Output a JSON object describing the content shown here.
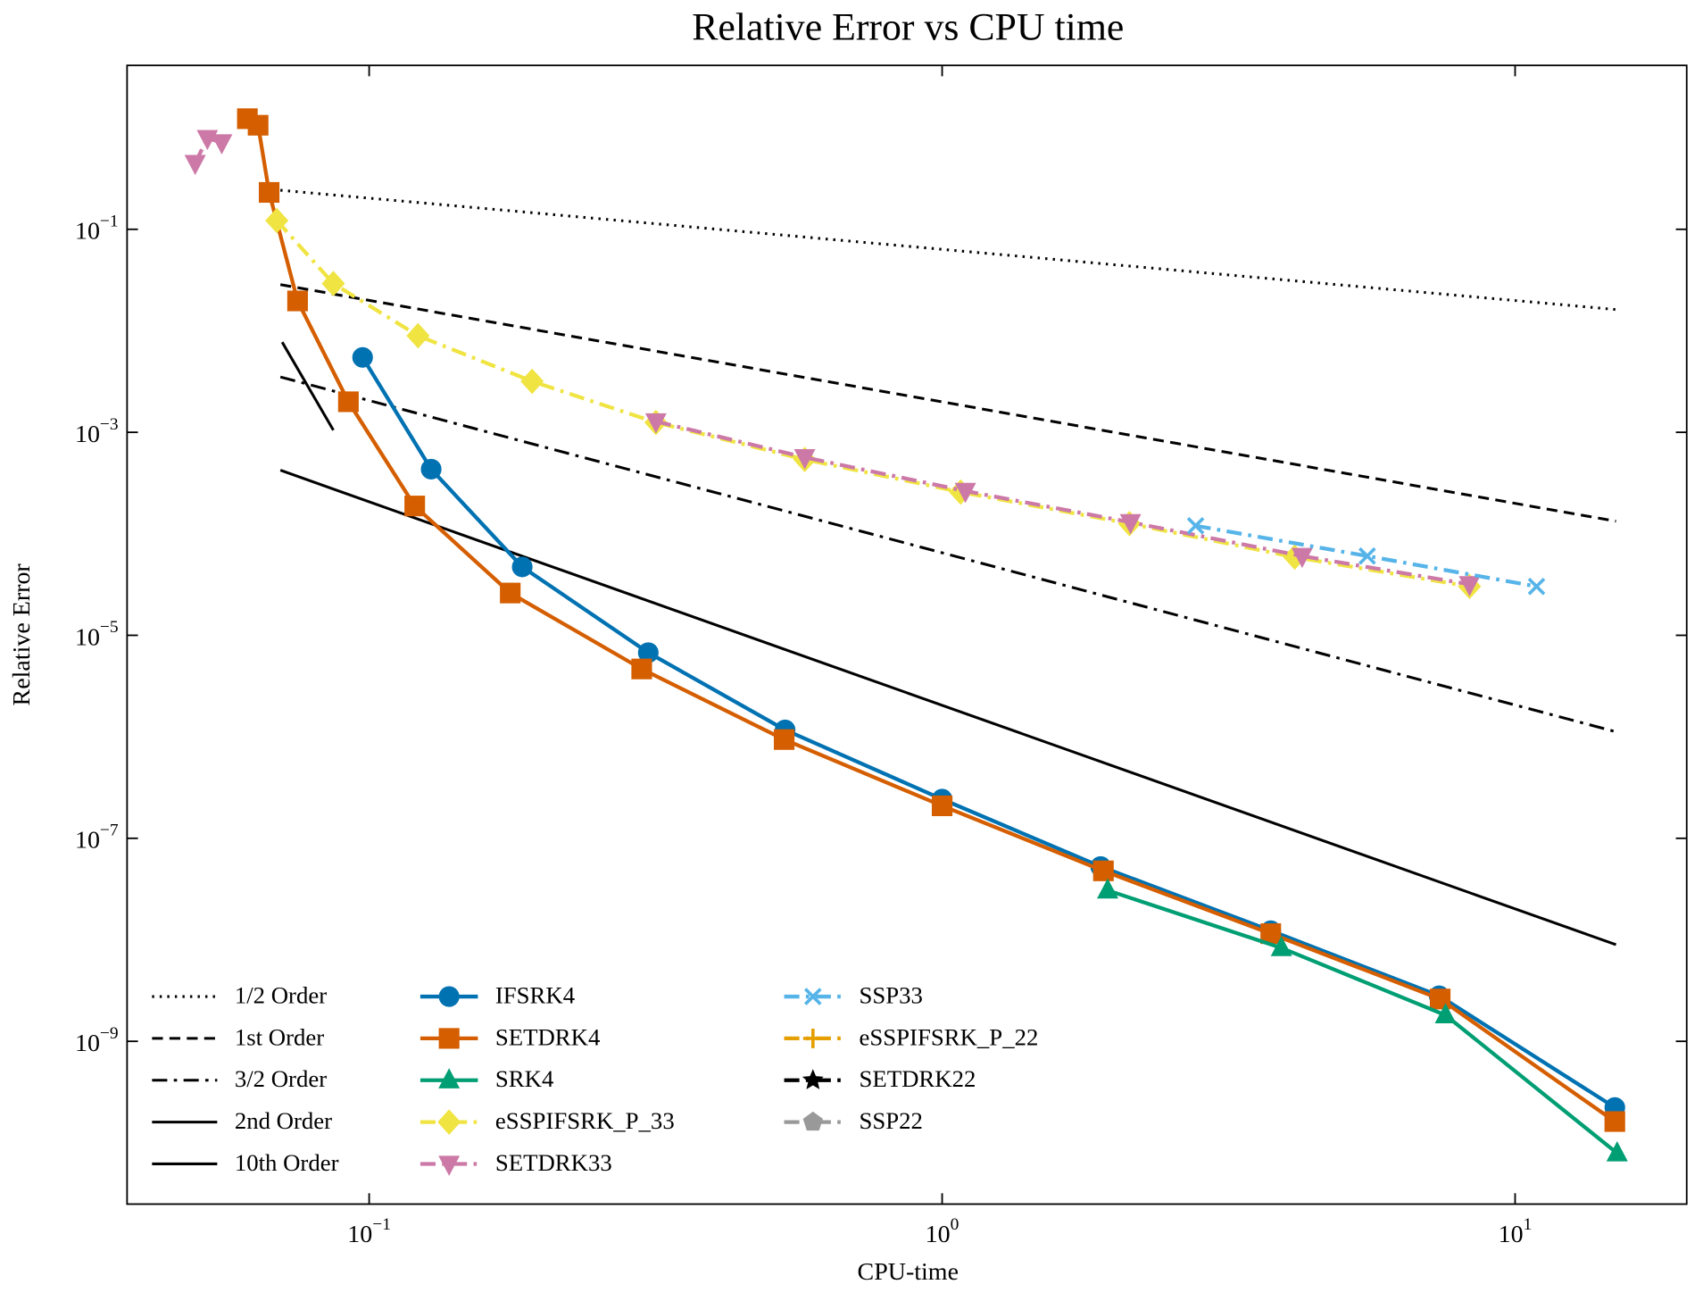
{
  "chart_data": {
    "type": "line",
    "title": "Relative Error vs CPU time",
    "xlabel": "CPU-time",
    "ylabel": "Relative Error",
    "xscale": "log",
    "yscale": "log",
    "xlim": [
      0.0378,
      19.93
    ],
    "ylim": [
      2.49e-11,
      4.12
    ],
    "xticks": [
      {
        "value": 0.1,
        "label": "10−1"
      },
      {
        "value": 1,
        "label": "100"
      },
      {
        "value": 10,
        "label": "101"
      }
    ],
    "yticks": [
      {
        "value": 1e-09,
        "label": "10−9"
      },
      {
        "value": 1e-07,
        "label": "10−7"
      },
      {
        "value": 1e-05,
        "label": "10−5"
      },
      {
        "value": 0.001,
        "label": "10−3"
      },
      {
        "value": 0.1,
        "label": "10−1"
      }
    ],
    "legend": "lower left",
    "legend_columns": 3,
    "series": [
      {
        "name": "1/2 Order",
        "color": "#000000",
        "linestyle": "dotted",
        "marker": "none",
        "x": [
          0.07,
          15
        ],
        "values": [
          0.2426,
          0.0162
        ]
      },
      {
        "name": "1st Order",
        "color": "#000000",
        "linestyle": "dashed",
        "marker": "none",
        "x": [
          0.07,
          15
        ],
        "values": [
          0.0285,
          0.000133
        ]
      },
      {
        "name": "3/2 Order",
        "color": "#000000",
        "linestyle": "dashdot",
        "marker": "none",
        "x": [
          0.07,
          15
        ],
        "values": [
          0.00351,
          1.12e-06
        ]
      },
      {
        "name": "2nd Order",
        "color": "#000000",
        "linestyle": "solid",
        "marker": "none",
        "x": [
          0.07,
          15
        ],
        "values": [
          0.000423,
          8.95e-09
        ]
      },
      {
        "name": "10th Order",
        "color": "#000000",
        "linestyle": "solid",
        "marker": "none",
        "x": [
          0.0705,
          0.0866
        ],
        "values": [
          0.00773,
          0.00105
        ]
      },
      {
        "name": "IFSRK4",
        "color": "#0072b2",
        "linestyle": "solid",
        "marker": "circle",
        "x": [
          0.0974,
          0.1283,
          0.185,
          0.307,
          0.532,
          1.0,
          1.891,
          3.746,
          7.37,
          14.93
        ],
        "values": [
          0.00547,
          0.000433,
          4.72e-05,
          6.75e-06,
          1.17e-06,
          2.43e-07,
          5.27e-08,
          1.23e-08,
          2.81e-09,
          2.23e-10
        ]
      },
      {
        "name": "SETDRK4",
        "color": "#d55e00",
        "linestyle": "solid",
        "marker": "square",
        "x": [
          0.0613,
          0.064,
          0.0669,
          0.075,
          0.092,
          0.1201,
          0.1763,
          0.299,
          0.53,
          1.0,
          1.912,
          3.746,
          7.4,
          14.93
        ],
        "values": [
          1.23,
          1.06,
          0.231,
          0.0197,
          0.002,
          0.000188,
          2.61e-05,
          4.66e-06,
          9.4e-07,
          2.09e-07,
          4.78e-08,
          1.15e-08,
          2.61e-09,
          1.62e-10
        ]
      },
      {
        "name": "SRK4",
        "color": "#009e73",
        "linestyle": "solid",
        "marker": "triangle-up",
        "x": [
          1.945,
          3.91,
          7.56,
          15.07
        ],
        "values": [
          3.07e-08,
          8.32e-09,
          1.81e-09,
          7.9e-11
        ]
      },
      {
        "name": "eSSPIFSRK_P_33",
        "color": "#f0e442",
        "linestyle": "dashdot",
        "marker": "diamond",
        "x": [
          0.069,
          0.0866,
          0.1217,
          0.1925,
          0.3166,
          0.5757,
          1.077,
          2.123,
          4.124,
          8.326
        ],
        "values": [
          0.122,
          0.0292,
          0.00895,
          0.00318,
          0.00125,
          0.00054,
          0.000258,
          0.000126,
          5.89e-05,
          3.03e-05
        ]
      },
      {
        "name": "SETDRK33",
        "color": "#cc79a7",
        "linestyle": "dashdot",
        "marker": "triangle-down",
        "x": [
          0.0497,
          0.0522,
          0.0553,
          null,
          0.3166,
          0.5757,
          1.098,
          2.132,
          4.25,
          8.326
        ],
        "values": [
          0.449,
          0.791,
          0.717,
          null,
          0.00128,
          0.000567,
          0.000264,
          0.00013,
          6.04e-05,
          3.18e-05
        ]
      },
      {
        "name": "SSP33",
        "color": "#56b4e9",
        "linestyle": "dashdot",
        "marker": "x",
        "x": [
          2.77,
          5.52,
          10.9
        ],
        "values": [
          0.00012,
          6.04e-05,
          3.03e-05
        ]
      },
      {
        "name": "eSSPIFSRK_P_22",
        "color": "#e69f00",
        "linestyle": "dashdot",
        "marker": "plus",
        "x": [],
        "values": []
      },
      {
        "name": "SETDRK22",
        "color": "#000000",
        "linestyle": "dashdot",
        "marker": "star",
        "x": [],
        "values": []
      },
      {
        "name": "SSP22",
        "color": "#999999",
        "linestyle": "dashdot",
        "marker": "pentagon",
        "x": [],
        "values": []
      }
    ]
  }
}
